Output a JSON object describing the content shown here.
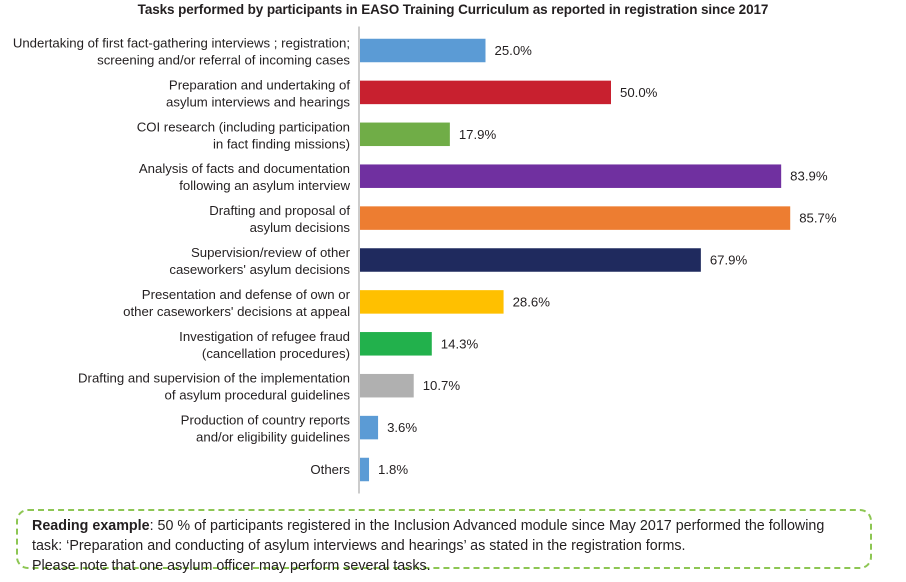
{
  "chart_data": {
    "type": "bar",
    "orientation": "horizontal",
    "title": "Tasks performed by participants in EASO Training Curriculum as reported in registration since 2017",
    "xlim": [
      0,
      100
    ],
    "categories": [
      [
        "Undertaking of first fact-gathering interviews ; registration;",
        "screening and/or referral of incoming cases"
      ],
      [
        "Preparation and undertaking of",
        "asylum interviews and hearings"
      ],
      [
        "COI research (including participation",
        "in fact finding missions)"
      ],
      [
        "Analysis of facts and documentation",
        "following an asylum interview"
      ],
      [
        "Drafting and proposal of",
        "asylum decisions"
      ],
      [
        "Supervision/review of other",
        "caseworkers' asylum decisions"
      ],
      [
        "Presentation and defense of own or",
        "other caseworkers' decisions at appeal"
      ],
      [
        "Investigation of refugee fraud",
        "(cancellation procedures)"
      ],
      [
        "Drafting and supervision of the implementation",
        "of asylum procedural guidelines"
      ],
      [
        "Production of country reports",
        "and/or eligibility guidelines"
      ],
      [
        "Others"
      ]
    ],
    "values": [
      25.0,
      50.0,
      17.9,
      83.9,
      85.7,
      67.9,
      28.6,
      14.3,
      10.7,
      3.6,
      1.8
    ],
    "value_labels": [
      "25.0%",
      "50.0%",
      "17.9%",
      "83.9%",
      "85.7%",
      "67.9%",
      "28.6%",
      "14.3%",
      "10.7%",
      "3.6%",
      "1.8%"
    ],
    "colors": [
      "#5b9bd5",
      "#c8202f",
      "#70ad47",
      "#7030a0",
      "#ed7d31",
      "#1f2a5e",
      "#ffc000",
      "#22b14c",
      "#b0b0b0",
      "#5b9bd5",
      "#5b9bd5"
    ]
  },
  "note": {
    "bold": "Reading example",
    "line1": ": 50 % of participants registered in the Inclusion Advanced module since May 2017 performed the following",
    "line2": "task: ‘Preparation and conducting of asylum interviews and hearings’ as stated in the registration forms.",
    "line3": "Please note that one asylum officer may perform several tasks."
  }
}
